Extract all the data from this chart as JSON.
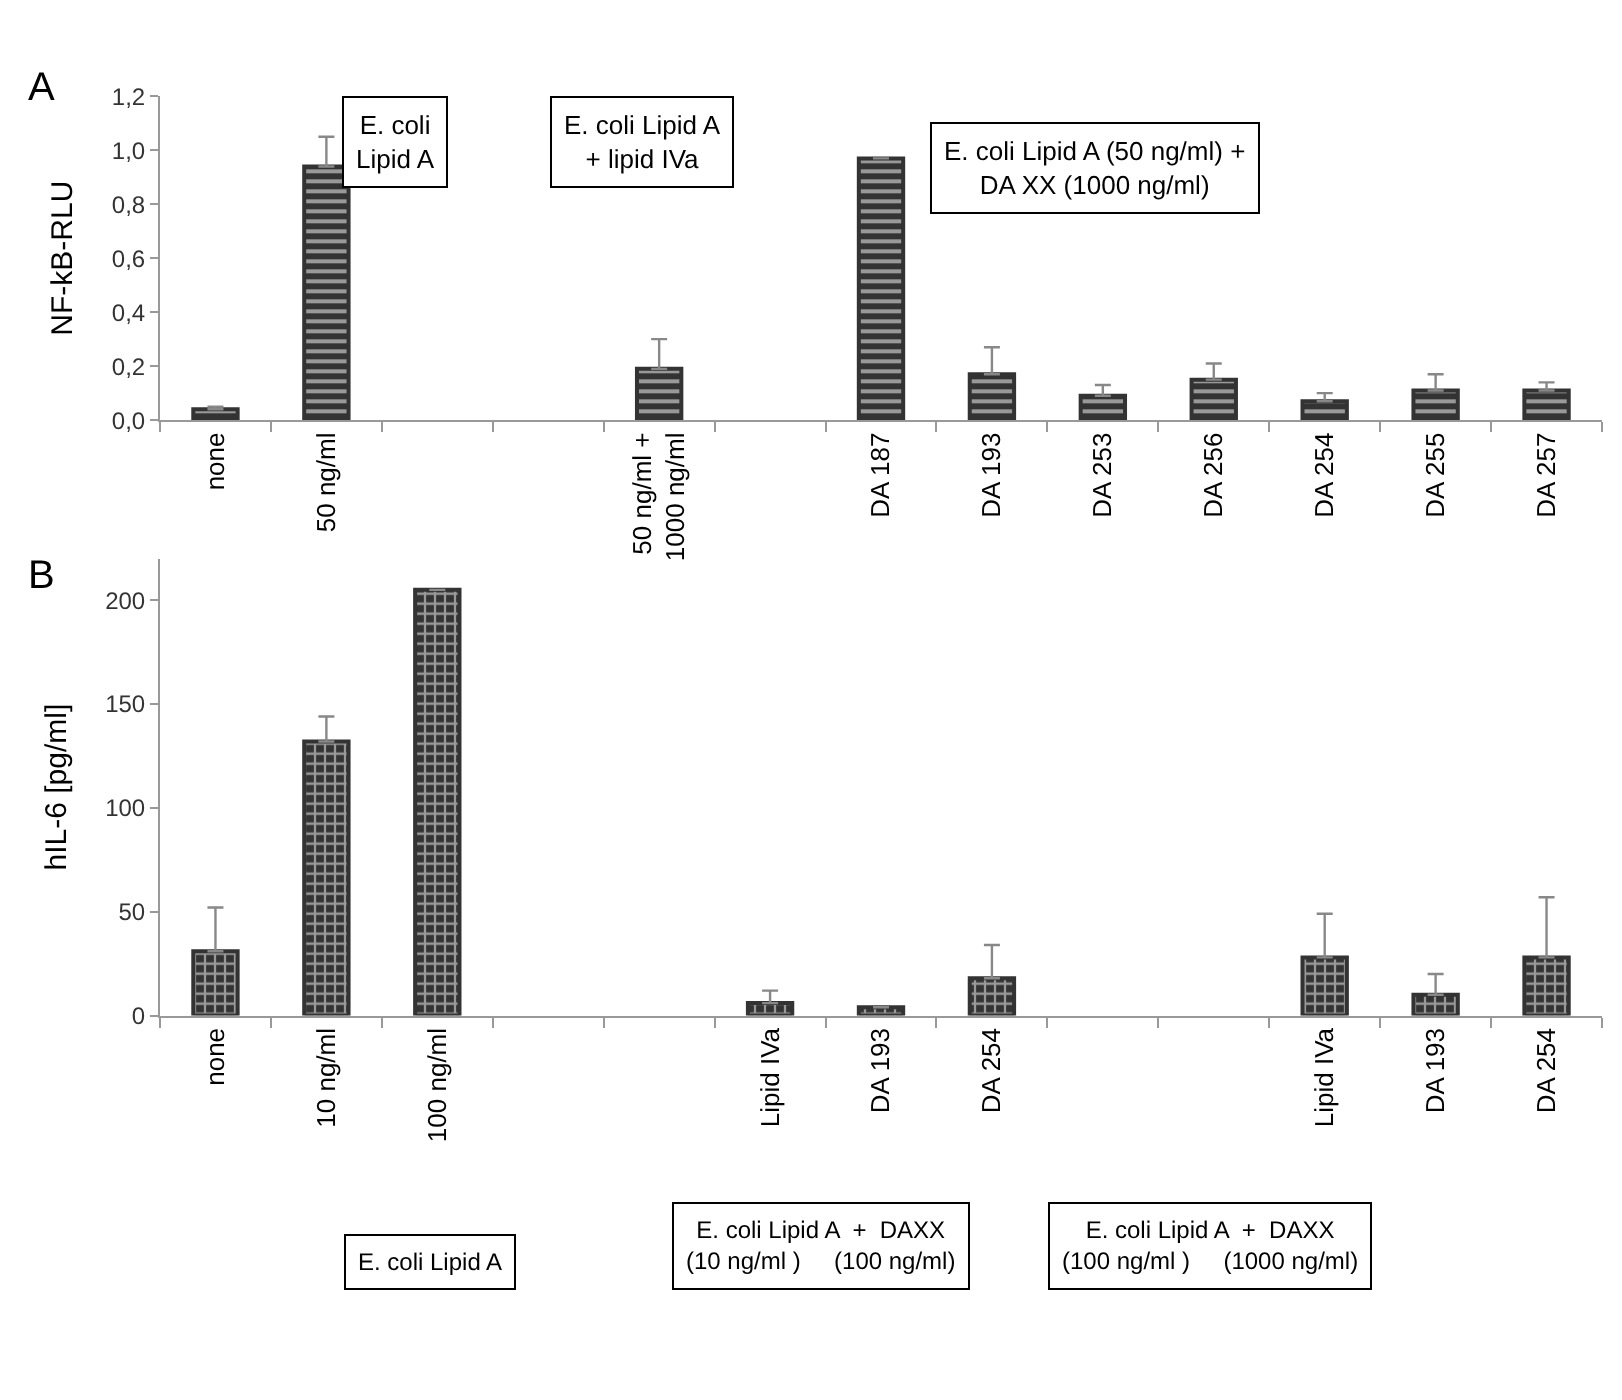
{
  "chart_data": [
    {
      "type": "bar",
      "title": "A",
      "ylabel": "NF-kB-RLU",
      "categories": [
        "none",
        "50 ng/ml",
        null,
        null,
        "50 ng/ml +\n1000 ng/ml",
        null,
        "DA 187",
        "DA 193",
        "DA 253",
        "DA 256",
        "DA 254",
        "DA 255",
        "DA 257"
      ],
      "values": [
        0.04,
        0.94,
        null,
        null,
        0.19,
        null,
        0.97,
        0.17,
        0.09,
        0.15,
        0.07,
        0.11,
        0.11
      ],
      "errors": [
        [
          0.04,
          0.05
        ],
        [
          0.94,
          1.05
        ],
        null,
        null,
        [
          0.19,
          0.3
        ],
        null,
        null,
        [
          0.17,
          0.27
        ],
        [
          0.09,
          0.13
        ],
        [
          0.15,
          0.21
        ],
        [
          0.07,
          0.1
        ],
        [
          0.11,
          0.17
        ],
        [
          0.11,
          0.14
        ]
      ],
      "color": "#333333",
      "ylim": [
        0,
        1.2
      ],
      "yticks": [
        {
          "value": 0,
          "label": "0,0"
        },
        {
          "value": 0.2,
          "label": "0,2"
        },
        {
          "value": 0.4,
          "label": "0,4"
        },
        {
          "value": 0.6,
          "label": "0,6"
        },
        {
          "value": 0.8,
          "label": "0,8"
        },
        {
          "value": 1,
          "label": "1,0"
        },
        {
          "value": 1.2,
          "label": "1,2"
        }
      ],
      "annotations": [
        "E. coli\nLipid A",
        "E. coli Lipid A\n+ lipid IVa",
        "E. coli Lipid A (50 ng/ml) +\nDA XX (1000 ng/ml)"
      ]
    },
    {
      "type": "bar",
      "title": "B",
      "ylabel": "hIL-6 [pg/ml]",
      "categories": [
        "none",
        "10 ng/ml",
        "100 ng/ml",
        null,
        null,
        "Lipid IVa",
        "DA 193",
        "DA 254",
        null,
        null,
        "Lipid IVa",
        "DA 193",
        "DA 254"
      ],
      "values": [
        31,
        132,
        205,
        null,
        null,
        6,
        4,
        18,
        null,
        null,
        28,
        10,
        28
      ],
      "errors": [
        [
          31,
          52
        ],
        [
          132,
          144
        ],
        null,
        null,
        null,
        [
          6,
          12
        ],
        null,
        [
          18,
          34
        ],
        null,
        null,
        [
          28,
          49
        ],
        [
          10,
          20
        ],
        [
          28,
          57
        ]
      ],
      "color": "#333333",
      "ylim": [
        0,
        220
      ],
      "yticks": [
        0,
        50,
        100,
        150,
        200
      ],
      "annotations": [
        "E. coli Lipid A",
        "E. coli Lipid A  +  DAXX\n(10 ng/ml )     (100 ng/ml)",
        "E. coli Lipid A  +  DAXX\n(100 ng/ml )     (1000 ng/ml)"
      ]
    }
  ]
}
